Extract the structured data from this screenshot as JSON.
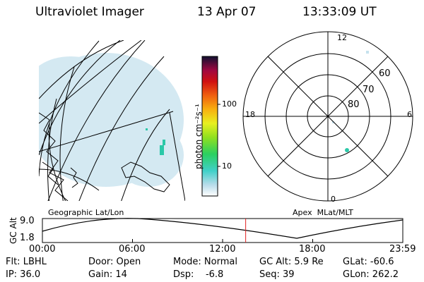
{
  "header": {
    "instrument": "Ultraviolet Imager",
    "date": "13 Apr 07",
    "time": "13:33:09 UT"
  },
  "colorbar": {
    "unit_label": "photon cm⁻²s⁻¹",
    "ticks": [
      "100",
      "10"
    ]
  },
  "left_panel": {
    "caption": "Geographic Lat/Lon"
  },
  "right_panel": {
    "caption": "Apex  MLat/MLT",
    "mlt_labels": {
      "top": "12",
      "left": "18",
      "right": "6",
      "bottom": "0"
    },
    "lat_labels": [
      "60",
      "70",
      "80"
    ]
  },
  "altitude_plot": {
    "ylabel": "GC Alt",
    "ymax": "9.0",
    "ymin": "1.8",
    "xticks": [
      "00:00",
      "06:00",
      "12:00",
      "18:00",
      "23:59"
    ],
    "current_time_fraction": 0.564
  },
  "status": {
    "flt": "Flt: LBHL",
    "ip": "IP: 36.0",
    "door": "Door: Open",
    "gain": "Gain: 14",
    "mode": "Mode: Normal",
    "dsp": "Dsp:    -6.8",
    "gc_alt": "GC Alt: 5.9 Re",
    "seq": "Seq: 39",
    "glat": "GLat: -60.6",
    "glon": "GLon: 262.2"
  },
  "colors": {
    "marker_line": "#e02020",
    "dim_glow": "#b8dcea",
    "bright_spot": "#2bc8a8"
  }
}
